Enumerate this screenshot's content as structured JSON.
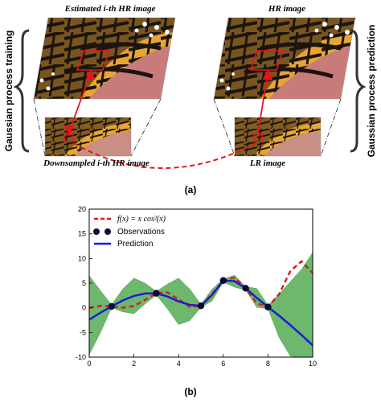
{
  "panel_a": {
    "caption": "(a)",
    "left_side_label": "Gaussian process training",
    "right_side_label": "Gaussian process prediction",
    "top_left_label": "Estimated i-th HR image",
    "top_right_label": "HR image",
    "bottom_left_label": "Downsampled i-th HR image",
    "bottom_right_label": "LR image",
    "colors": {
      "accent": "#e8141c",
      "wing_orange": "#e8a531",
      "wing_black": "#1b1410",
      "background_pink": "#c77c7a"
    }
  },
  "panel_b": {
    "caption": "(b)",
    "legend": {
      "function_label": "f(x) = x cos²(x)",
      "observations_label": "Observations",
      "prediction_label": "Prediction"
    },
    "colors": {
      "function": "#dd1c1c",
      "prediction": "#1c1cd4",
      "confidence": "#6db86d",
      "observations": "#0a0a33"
    }
  },
  "chart_data": {
    "type": "line",
    "title": "",
    "xlabel": "",
    "ylabel": "",
    "xlim": [
      0,
      10
    ],
    "ylim": [
      -10,
      20
    ],
    "xticks": [
      0,
      2,
      4,
      6,
      8,
      10
    ],
    "yticks": [
      -10,
      -5,
      0,
      5,
      10,
      15,
      20
    ],
    "grid": false,
    "legend_placement": "top-left",
    "observations": {
      "x": [
        1,
        3,
        5,
        6,
        7,
        8
      ],
      "y": [
        0.29,
        2.94,
        0.4,
        5.53,
        3.97,
        0.17
      ]
    },
    "series": [
      {
        "name": "f(x) = x cos²(x)",
        "style": "dashed",
        "x": [
          0,
          0.5,
          1,
          1.5,
          2,
          2.5,
          3,
          3.5,
          4,
          4.5,
          5,
          5.5,
          6,
          6.5,
          7,
          7.5,
          8,
          8.5,
          9,
          9.5,
          10
        ],
        "y": [
          0,
          0.38,
          0.29,
          0.01,
          0.35,
          1.61,
          2.94,
          3.13,
          1.71,
          0.2,
          0.4,
          2.84,
          5.53,
          6.11,
          3.97,
          0.92,
          0.17,
          2.79,
          7.43,
          9.43,
          7.04
        ]
      },
      {
        "name": "Prediction",
        "style": "solid",
        "x": [
          0,
          0.5,
          1,
          1.5,
          2,
          2.5,
          3,
          3.5,
          4,
          4.5,
          5,
          5.5,
          6,
          6.5,
          7,
          7.5,
          8,
          8.5,
          9,
          9.5,
          10
        ],
        "y": [
          -2.4,
          -1.0,
          0.29,
          1.5,
          2.4,
          2.9,
          2.94,
          2.3,
          1.3,
          0.6,
          0.4,
          2.6,
          5.53,
          5.4,
          3.97,
          2.0,
          0.17,
          -1.6,
          -3.5,
          -5.5,
          -7.6
        ]
      }
    ],
    "confidence_band": {
      "x": [
        0,
        0.5,
        1,
        1.5,
        2,
        2.5,
        3,
        3.5,
        4,
        4.5,
        5,
        5.5,
        6,
        6.5,
        7,
        7.5,
        8,
        8.5,
        9,
        9.5,
        10
      ],
      "upper": [
        6.5,
        3.5,
        0.6,
        3.8,
        6.0,
        5.0,
        3.3,
        4.8,
        6.0,
        3.8,
        0.7,
        3.8,
        5.8,
        6.6,
        4.3,
        3.9,
        0.5,
        2.8,
        5.3,
        7.8,
        11.2
      ],
      "lower": [
        -9.5,
        -5.0,
        0.0,
        -0.8,
        -1.2,
        0.8,
        2.6,
        -0.2,
        -3.4,
        -2.6,
        0.1,
        1.4,
        5.2,
        4.2,
        3.6,
        0.1,
        -0.2,
        -6.0,
        -9.8,
        -10.0,
        -10.0
      ]
    }
  }
}
